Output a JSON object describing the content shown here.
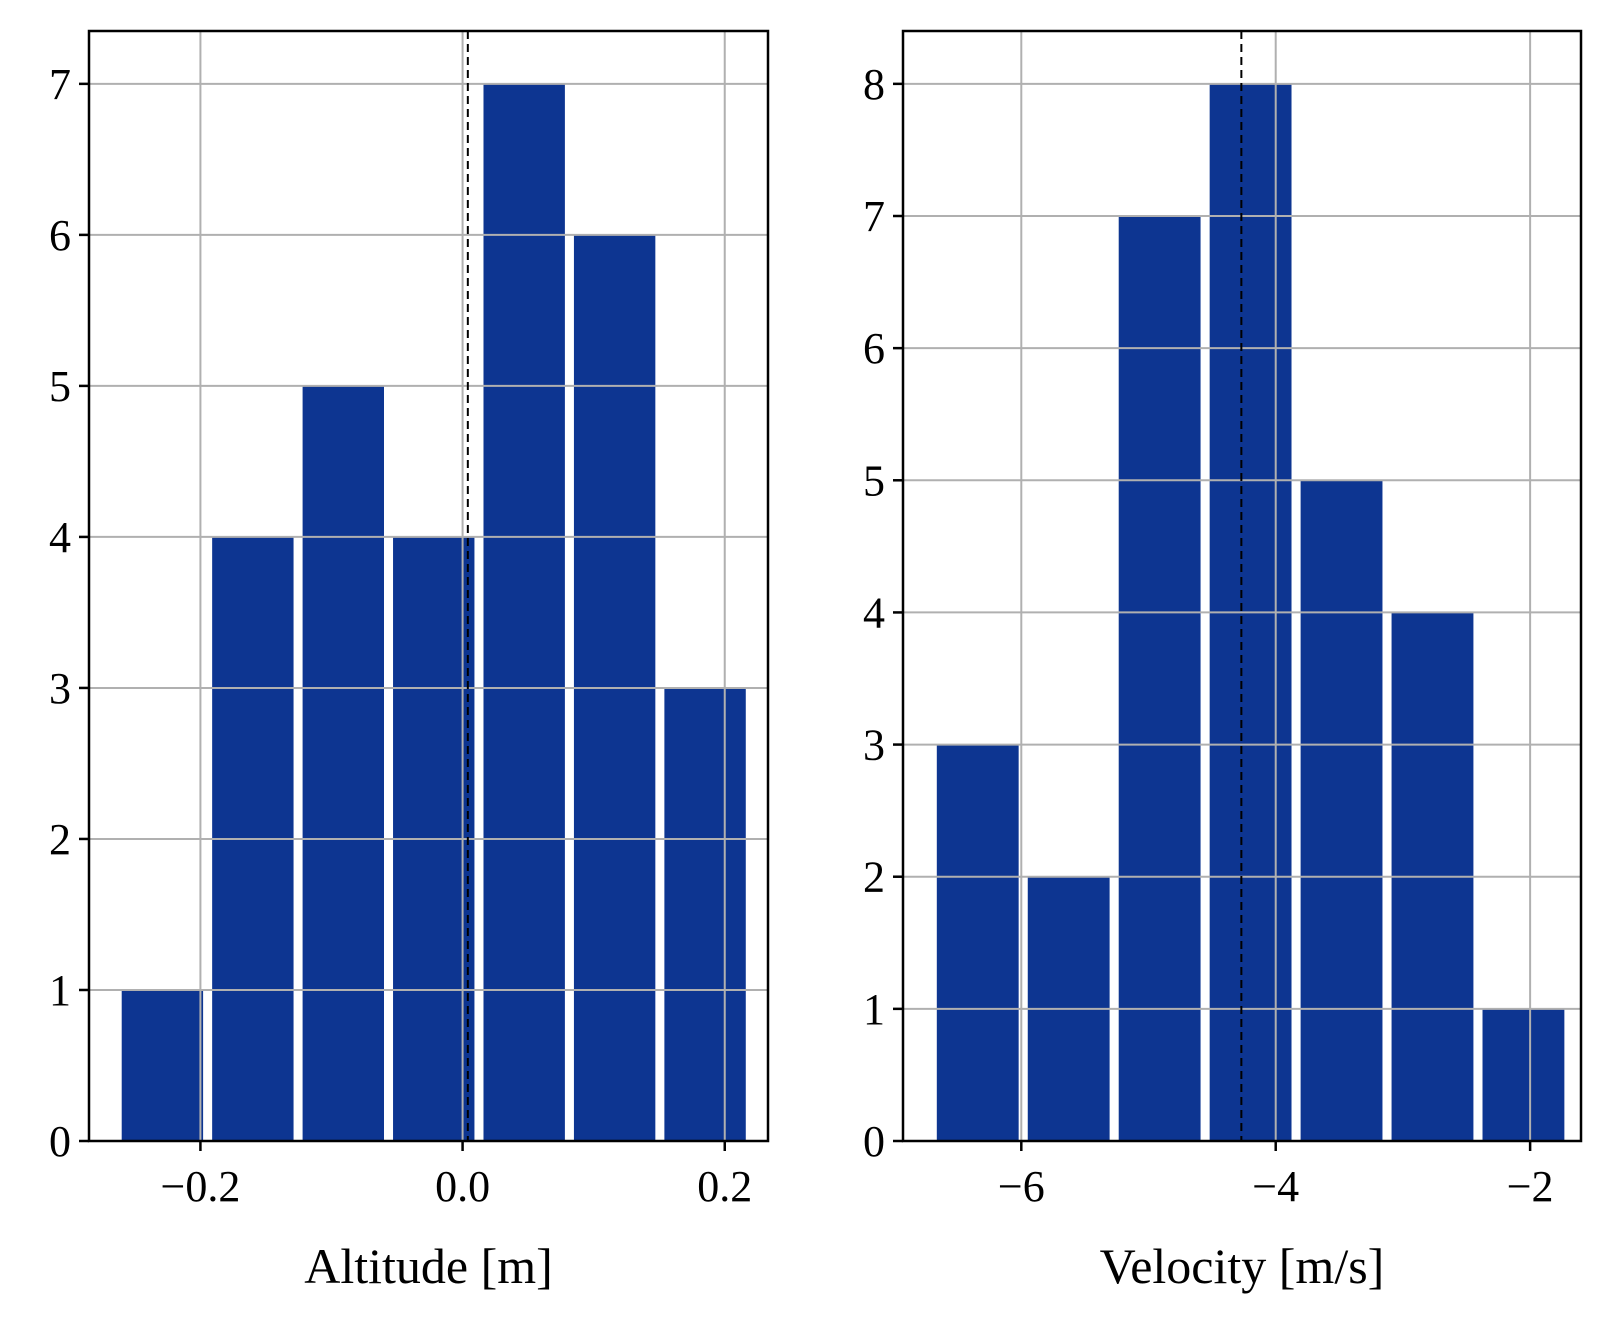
{
  "chart_data": [
    {
      "type": "bar",
      "xlabel": "Altitude [m]",
      "ylabel": "",
      "xlim": [
        -0.285,
        0.233
      ],
      "ylim": [
        0,
        7.35
      ],
      "xticks": [
        {
          "value": -0.2,
          "label": "−0.2"
        },
        {
          "value": 0.0,
          "label": "0.0"
        },
        {
          "value": 0.2,
          "label": "0.2"
        }
      ],
      "yticks": [
        {
          "value": 0,
          "label": "0"
        },
        {
          "value": 1,
          "label": "1"
        },
        {
          "value": 2,
          "label": "2"
        },
        {
          "value": 3,
          "label": "3"
        },
        {
          "value": 4,
          "label": "4"
        },
        {
          "value": 5,
          "label": "5"
        },
        {
          "value": 6,
          "label": "6"
        },
        {
          "value": 7,
          "label": "7"
        }
      ],
      "bin_edges": [
        -0.2635,
        -0.1945,
        -0.1255,
        -0.0565,
        0.0125,
        0.0815,
        0.1505,
        0.2195
      ],
      "values": [
        1,
        4,
        5,
        4,
        7,
        6,
        3
      ],
      "mean_line": 0.004,
      "grid": true,
      "bar_color": "#0d3591"
    },
    {
      "type": "bar",
      "xlabel": "Velocity [m/s]",
      "ylabel": "",
      "xlim": [
        -6.93,
        -1.6
      ],
      "ylim": [
        0,
        8.4
      ],
      "xticks": [
        {
          "value": -6,
          "label": "−6"
        },
        {
          "value": -4,
          "label": "−4"
        },
        {
          "value": -2,
          "label": "−2"
        }
      ],
      "yticks": [
        {
          "value": 0,
          "label": "0"
        },
        {
          "value": 1,
          "label": "1"
        },
        {
          "value": 2,
          "label": "2"
        },
        {
          "value": 3,
          "label": "3"
        },
        {
          "value": 4,
          "label": "4"
        },
        {
          "value": 5,
          "label": "5"
        },
        {
          "value": 6,
          "label": "6"
        },
        {
          "value": 7,
          "label": "7"
        },
        {
          "value": 8,
          "label": "8"
        }
      ],
      "bin_edges": [
        -6.7,
        -5.985,
        -5.27,
        -4.555,
        -3.84,
        -3.125,
        -2.41,
        -1.695
      ],
      "values": [
        3,
        2,
        7,
        8,
        5,
        4,
        1
      ],
      "mean_line": -4.27,
      "grid": true,
      "bar_color": "#0d3591"
    }
  ]
}
